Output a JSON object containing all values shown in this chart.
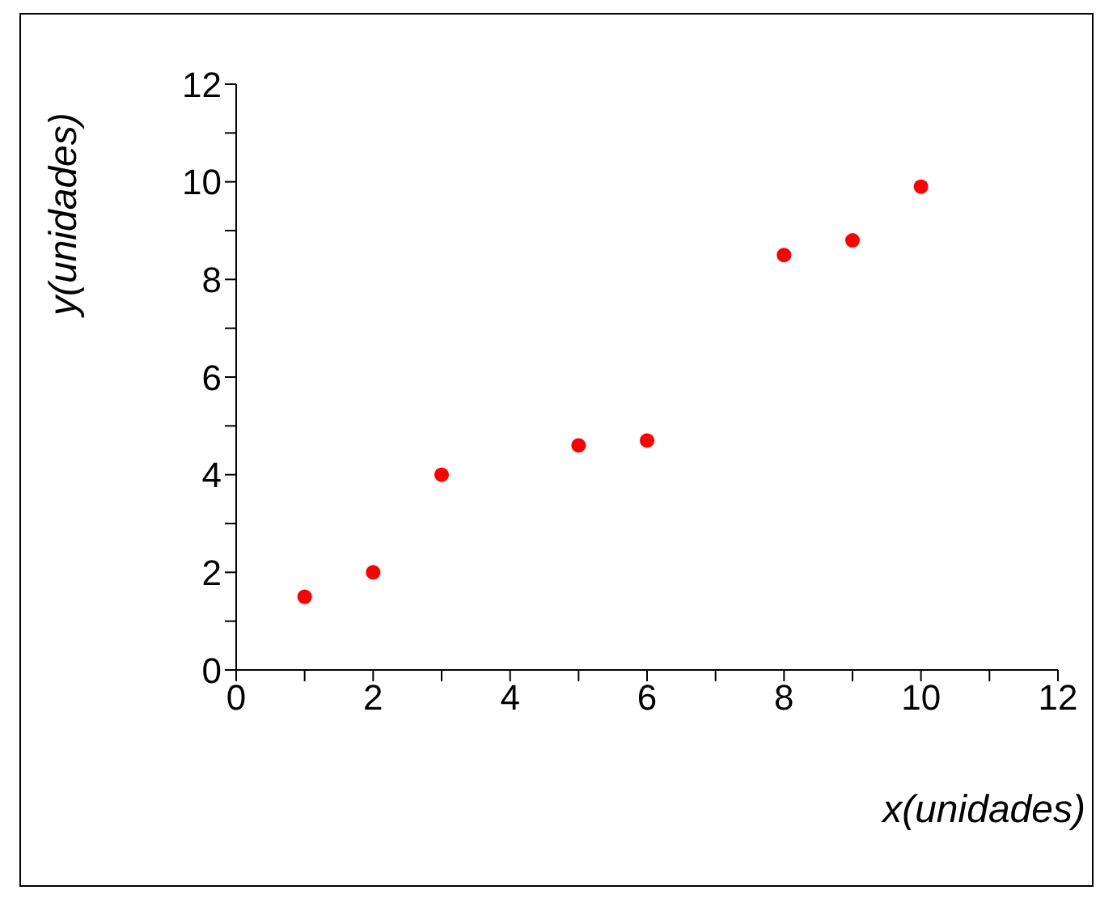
{
  "chart_data": {
    "type": "scatter",
    "xlabel": "x(unidades)",
    "ylabel": "y(unidades)",
    "x": [
      1,
      2,
      3,
      5,
      6,
      8,
      9,
      10
    ],
    "series": [
      {
        "color": "#ff0000",
        "values": [
          1.5,
          2,
          4,
          4.6,
          4.7,
          8.5,
          8.8,
          9.9
        ]
      }
    ],
    "xlim": [
      0,
      12
    ],
    "ylim": [
      0,
      12
    ],
    "xticks": [
      0,
      {
        "value": 1,
        "label": null
      },
      2,
      {
        "value": 3,
        "label": null
      },
      4,
      {
        "value": 5,
        "label": null
      },
      6,
      {
        "value": 7,
        "label": null
      },
      8,
      {
        "value": 9,
        "label": null
      },
      10,
      {
        "value": 11,
        "label": null
      },
      12
    ],
    "yticks": [
      0,
      {
        "value": 1,
        "label": null
      },
      2,
      {
        "value": 3,
        "label": null
      },
      4,
      {
        "value": 5,
        "label": null
      },
      6,
      {
        "value": 7,
        "label": null
      },
      8,
      {
        "value": 9,
        "label": null
      },
      10,
      {
        "value": 11,
        "label": null
      },
      12
    ],
    "grid": false,
    "marker": "circle"
  }
}
